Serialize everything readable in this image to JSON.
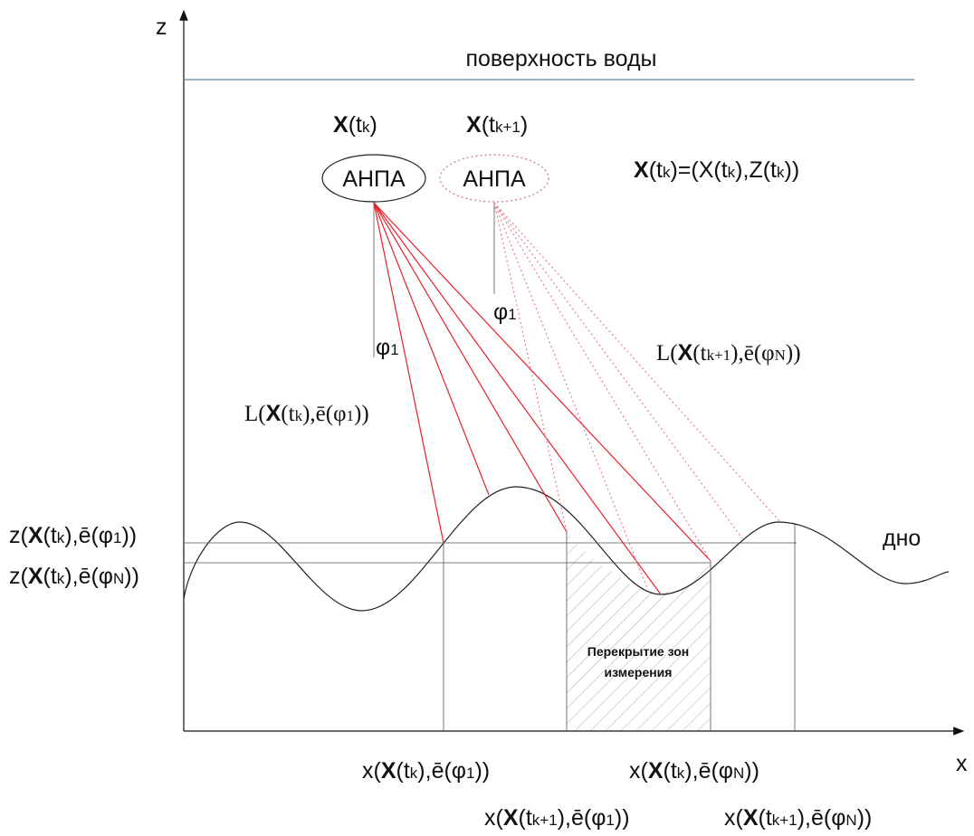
{
  "axis_z": "z",
  "axis_x": "x",
  "surface": "поверхность воды",
  "bottom": "дно",
  "auv_1": "АНПА",
  "auv_2": "АНПА",
  "pos_k": [
    "X",
    "(t",
    "k",
    ")"
  ],
  "pos_k1": [
    "X",
    "(t",
    "k+1",
    ")"
  ],
  "definition": [
    "X",
    "(t",
    "k",
    ")=(X(t",
    "k",
    "),Z(t",
    "k",
    "))"
  ],
  "angle_1": [
    "φ",
    "1"
  ],
  "angle_2": [
    "φ",
    "1"
  ],
  "range_k": [
    "L(",
    "X",
    "(t",
    "k",
    "),ē(φ",
    "1",
    "))"
  ],
  "range_k1": [
    "L(",
    "X",
    "(t",
    "k+1",
    "),ē(φ",
    "N",
    "))"
  ],
  "z_label_1": [
    "z(",
    "X",
    "(t",
    "k",
    "),ē(φ",
    "1",
    "))"
  ],
  "z_label_N": [
    "z(",
    "X",
    "(t",
    "k",
    "),ē(φ",
    "N",
    "))"
  ],
  "x_label_k_1": [
    "x(",
    "X",
    "(t",
    "k",
    "),ē(φ",
    "1",
    "))"
  ],
  "x_label_k_N": [
    "x(",
    "X",
    "(t",
    "k",
    "),ē(φ",
    "N",
    "))"
  ],
  "x_label_k1_1": [
    "x(",
    "X",
    "(t",
    "k+1",
    "),ē(φ",
    "1",
    "))"
  ],
  "x_label_k1_N": [
    "x(",
    "X",
    "(t",
    "k+1",
    "),ē(φ",
    "N",
    "))"
  ],
  "overlap": [
    "Перекрытие зон",
    "измерения"
  ]
}
